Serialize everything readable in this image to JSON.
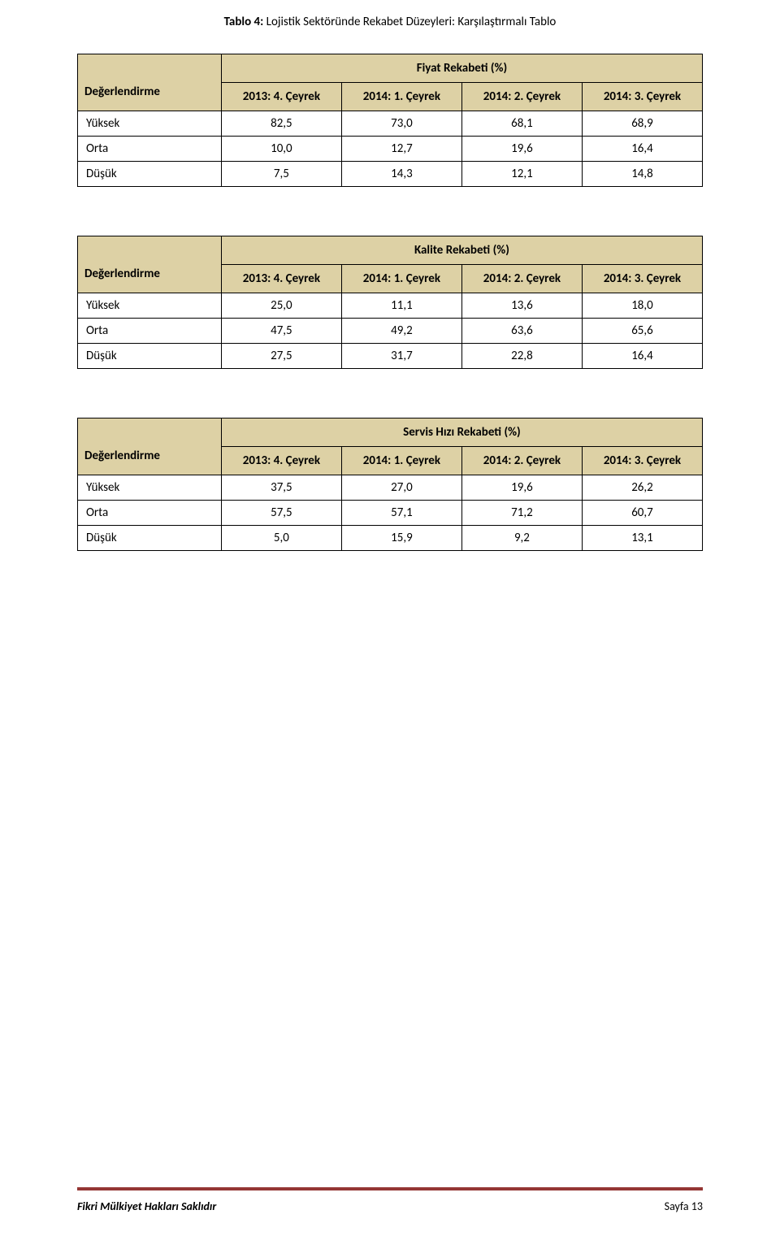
{
  "title_bold": "Tablo 4:",
  "title_rest": " Lojistik Sektöründe Rekabet Düzeyleri: Karşılaştırmalı Tablo",
  "row_header_label": "Değerlendirme",
  "periods": [
    "2013: 4. Çeyrek",
    "2014: 1. Çeyrek",
    "2014: 2. Çeyrek",
    "2014: 3. Çeyrek"
  ],
  "row_labels": [
    "Yüksek",
    "Orta",
    "Düşük"
  ],
  "tables": [
    {
      "title": "Fiyat Rekabeti (%)",
      "rows": [
        [
          "82,5",
          "73,0",
          "68,1",
          "68,9"
        ],
        [
          "10,0",
          "12,7",
          "19,6",
          "16,4"
        ],
        [
          "7,5",
          "14,3",
          "12,1",
          "14,8"
        ]
      ]
    },
    {
      "title": "Kalite Rekabeti (%)",
      "rows": [
        [
          "25,0",
          "11,1",
          "13,6",
          "18,0"
        ],
        [
          "47,5",
          "49,2",
          "63,6",
          "65,6"
        ],
        [
          "27,5",
          "31,7",
          "22,8",
          "16,4"
        ]
      ]
    },
    {
      "title": "Servis Hızı Rekabeti (%)",
      "rows": [
        [
          "37,5",
          "27,0",
          "19,6",
          "26,2"
        ],
        [
          "57,5",
          "57,1",
          "71,2",
          "60,7"
        ],
        [
          "5,0",
          "15,9",
          "9,2",
          "13,1"
        ]
      ]
    }
  ],
  "footer_left": "Fikri Mülkiyet Hakları Saklıdır",
  "footer_right": "Sayfa 13",
  "colors": {
    "header_bg": "#ddd1a5",
    "rule": "#943634",
    "text": "#000000",
    "background": "#ffffff"
  },
  "fontsize": {
    "body": 15,
    "footer": 14
  }
}
